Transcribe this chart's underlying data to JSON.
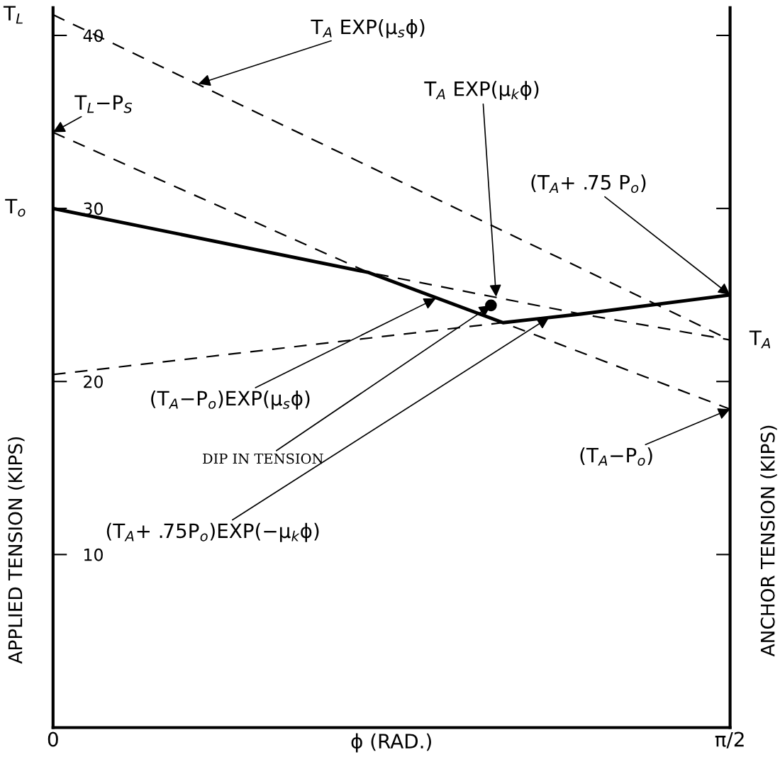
{
  "chart_data": {
    "type": "line",
    "xlabel": "ϕ (RAD.)",
    "ylabel": "APPLIED TENSION (KIPS)",
    "y2label": "ANCHOR TENSION (KIPS)",
    "xlim": [
      0,
      1.5708
    ],
    "xticks": [
      0,
      {
        "value": 1.5708,
        "label": "π/2"
      }
    ],
    "ylim": [
      0,
      41.6
    ],
    "yticks": [
      10,
      20,
      30,
      40
    ],
    "grid": false,
    "series": [
      {
        "line_style": "dashed",
        "color": "#000000",
        "x": [
          0,
          1.5708
        ],
        "values": [
          41.2,
          22.4
        ]
      },
      {
        "line_style": "dashed",
        "color": "#000000",
        "x": [
          0,
          0.732,
          1.225,
          1.5708
        ],
        "values": [
          34.4,
          26.3,
          23.9,
          22.4
        ]
      },
      {
        "line_style": "dashed",
        "color": "#000000",
        "x": [
          0.732,
          1.044,
          1.5708
        ],
        "values": [
          26.3,
          23.4,
          18.4
        ]
      },
      {
        "line_style": "dashed",
        "color": "#000000",
        "x": [
          0,
          1.044
        ],
        "values": [
          20.4,
          23.4
        ]
      },
      {
        "line_style": "solid",
        "color": "#000000",
        "x": [
          0,
          0.732,
          1.044,
          1.225,
          1.5708
        ],
        "values": [
          30.0,
          26.3,
          23.4,
          23.9,
          25.0
        ]
      },
      {
        "type": "scatter",
        "marker": "circle",
        "color": "#000000",
        "x": [
          1.016
        ],
        "values": [
          24.4
        ]
      }
    ],
    "annotations": [
      "T$_{L}$",
      "T$_{o}$",
      "T$_{A}$",
      {
        "text": "T$_{A}$ EXP(μ$_{s}$ϕ)",
        "x": 0.337,
        "y": 37.2
      },
      {
        "text": "T$_{L}$−P$_{S}$",
        "x": 0,
        "y": 34.4
      },
      {
        "text": "T$_{A}$ EXP(μ$_{k}$ϕ)",
        "x": 1.028,
        "y": 24.9
      },
      {
        "text": "(T$_{A}$+ .75 P$_{o}$)",
        "x": 1.5708,
        "y": 25.0
      },
      {
        "text": "(T$_{A}$−P$_{o}$)EXP(μ$_{s}$ϕ)",
        "x": 0.888,
        "y": 24.8
      },
      {
        "text": "DIP IN TENSION",
        "x": 1.016,
        "y": 24.4
      },
      {
        "text": "(T$_{A}$+ .75P$_{o}$)EXP(−μ$_{k}$ϕ)",
        "x": 1.151,
        "y": 23.7
      },
      {
        "text": "(T$_{A}$−P$_{o}$)",
        "x": 1.5708,
        "y": 18.4
      }
    ]
  }
}
